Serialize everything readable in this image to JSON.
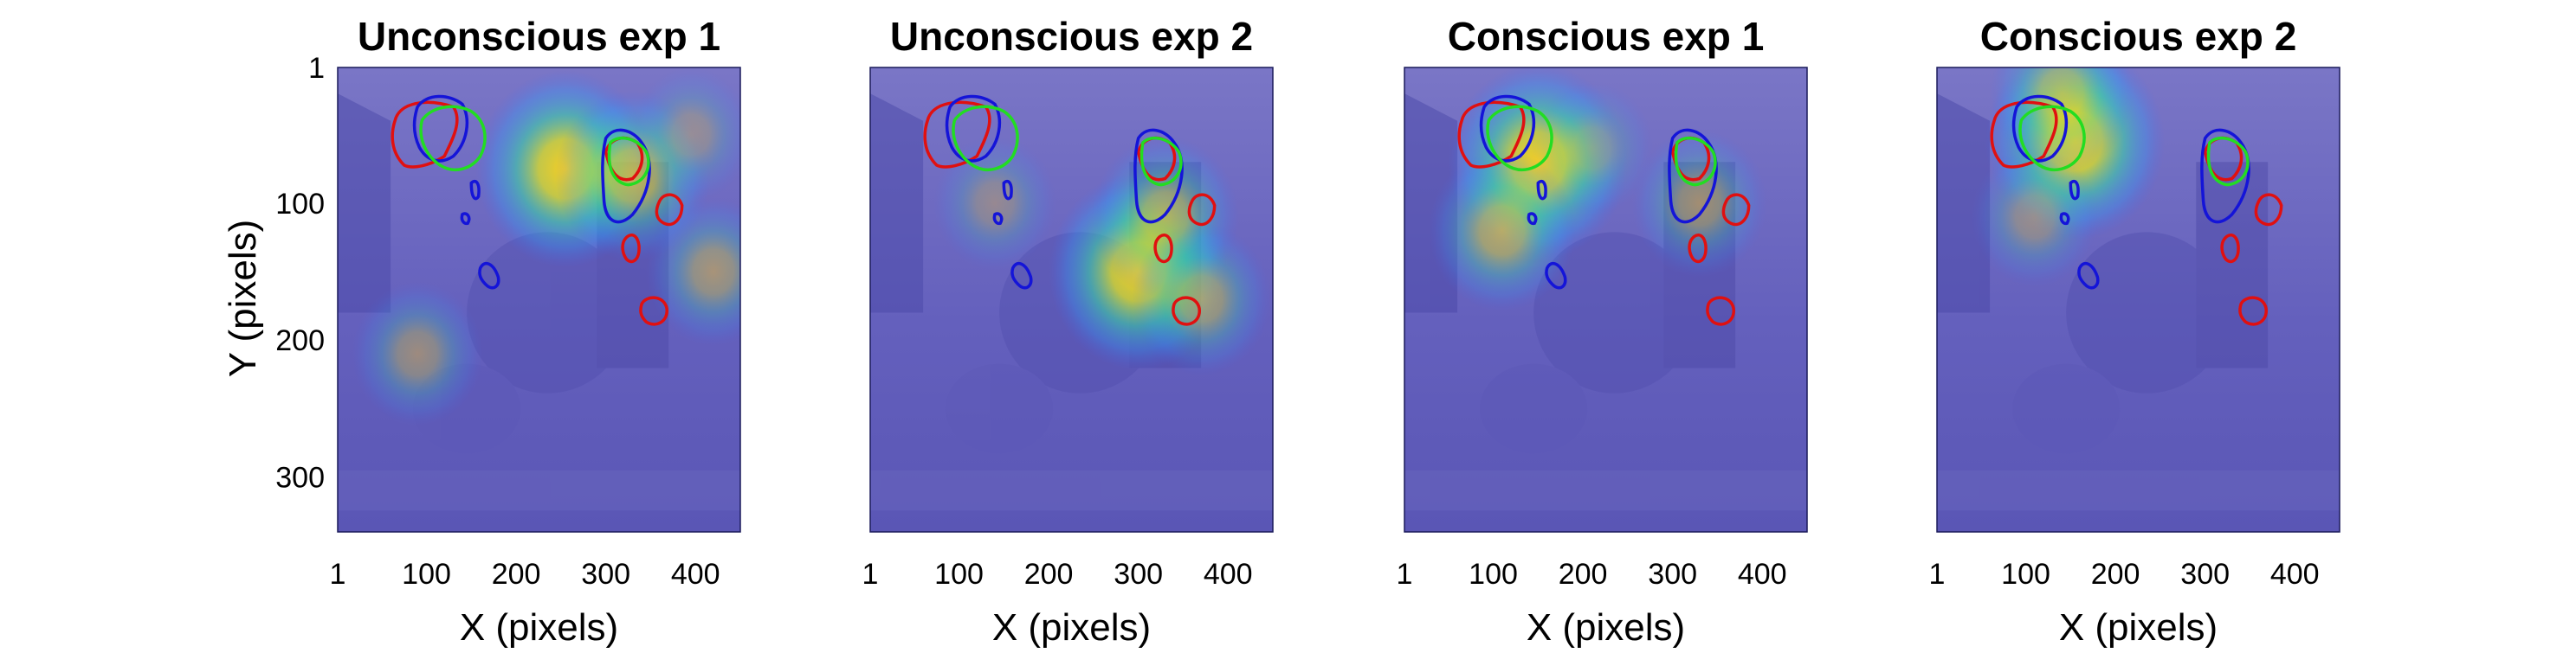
{
  "figure": {
    "ylabel": "Y (pixels)",
    "xlabel": "X (pixels)"
  },
  "chart_data": [
    {
      "type": "heatmap",
      "title": "Unconscious exp 1",
      "xlabel": "X (pixels)",
      "ylabel": "Y (pixels)",
      "xticks": [
        1,
        100,
        200,
        300,
        400
      ],
      "yticks": [
        1,
        100,
        200,
        300
      ],
      "xlim": [
        1,
        450
      ],
      "ylim": [
        1,
        340
      ],
      "hotspots": [
        {
          "x": 255,
          "y": 75,
          "intensity": 1.0
        },
        {
          "x": 330,
          "y": 80,
          "intensity": 0.7
        },
        {
          "x": 420,
          "y": 150,
          "intensity": 0.45
        },
        {
          "x": 90,
          "y": 210,
          "intensity": 0.4
        },
        {
          "x": 395,
          "y": 50,
          "intensity": 0.3
        }
      ]
    },
    {
      "type": "heatmap",
      "title": "Unconscious exp 2",
      "xlabel": "X (pixels)",
      "ylabel": "",
      "xticks": [
        1,
        100,
        200,
        300,
        400
      ],
      "yticks": [],
      "xlim": [
        1,
        450
      ],
      "ylim": [
        1,
        340
      ],
      "hotspots": [
        {
          "x": 300,
          "y": 150,
          "intensity": 1.0
        },
        {
          "x": 330,
          "y": 110,
          "intensity": 0.6
        },
        {
          "x": 370,
          "y": 170,
          "intensity": 0.5
        },
        {
          "x": 140,
          "y": 100,
          "intensity": 0.3
        }
      ]
    },
    {
      "type": "heatmap",
      "title": "Conscious exp 1",
      "xlabel": "X (pixels)",
      "ylabel": "",
      "xticks": [
        1,
        100,
        200,
        300,
        400
      ],
      "yticks": [],
      "xlim": [
        1,
        450
      ],
      "ylim": [
        1,
        340
      ],
      "hotspots": [
        {
          "x": 150,
          "y": 70,
          "intensity": 1.0
        },
        {
          "x": 110,
          "y": 120,
          "intensity": 0.6
        },
        {
          "x": 330,
          "y": 100,
          "intensity": 0.45
        },
        {
          "x": 210,
          "y": 60,
          "intensity": 0.3
        }
      ]
    },
    {
      "type": "heatmap",
      "title": "Conscious exp 2",
      "xlabel": "X (pixels)",
      "ylabel": "",
      "xticks": [
        1,
        100,
        200,
        300,
        400
      ],
      "yticks": [],
      "xlim": [
        1,
        450
      ],
      "ylim": [
        1,
        340
      ],
      "hotspots": [
        {
          "x": 155,
          "y": 55,
          "intensity": 1.0
        },
        {
          "x": 140,
          "y": 20,
          "intensity": 0.55
        },
        {
          "x": 110,
          "y": 110,
          "intensity": 0.35
        }
      ]
    }
  ],
  "colors": {
    "background_tint": "#5e5cc8",
    "roi_red": "#e01010",
    "roi_green": "#22dd22",
    "roi_blue": "#1414d8"
  }
}
